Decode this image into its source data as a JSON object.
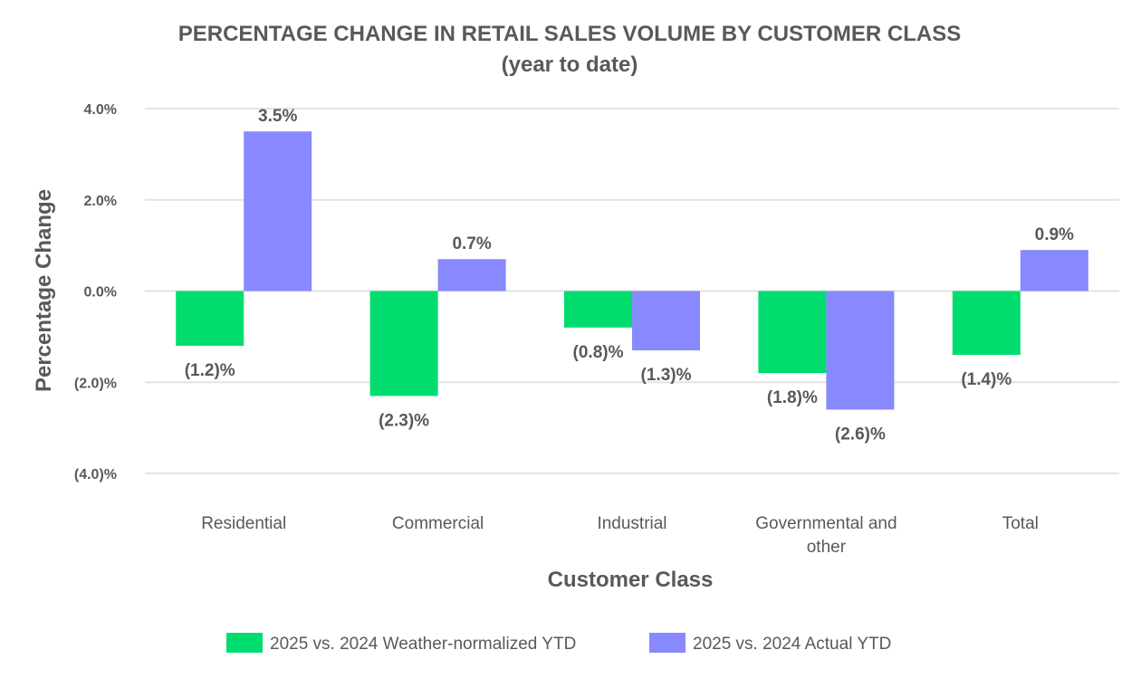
{
  "chart_data": {
    "type": "bar",
    "title": "PERCENTAGE CHANGE IN  RETAIL SALES VOLUME BY CUSTOMER CLASS",
    "subtitle": "(year to date)",
    "xlabel": "Customer Class",
    "ylabel": "Percentage Change",
    "ylim": [
      -4.0,
      4.0
    ],
    "y_ticks": [
      4.0,
      2.0,
      0.0,
      -2.0,
      -4.0
    ],
    "y_tick_labels": [
      "4.0%",
      "2.0%",
      "0.0%",
      "(2.0)%",
      "(4.0)%"
    ],
    "grid": true,
    "legend_position": "bottom",
    "categories": [
      [
        "Residential"
      ],
      [
        "Commercial"
      ],
      [
        "Industrial"
      ],
      [
        "Governmental and",
        "other"
      ],
      [
        "Total"
      ]
    ],
    "series": [
      {
        "name": "2025 vs. 2024 Weather-normalized YTD",
        "color": "#00dd6e",
        "values": [
          -1.2,
          -2.3,
          -0.8,
          -1.8,
          -1.4
        ],
        "labels": [
          "(1.2)%",
          "(2.3)%",
          "(0.8)%",
          "(1.8)%",
          "(1.4)%"
        ]
      },
      {
        "name": "2025 vs. 2024 Actual YTD",
        "color": "#8888ff",
        "values": [
          3.5,
          0.7,
          -1.3,
          -2.6,
          0.9
        ],
        "labels": [
          "3.5%",
          "0.7%",
          "(1.3)%",
          "(2.6)%",
          "0.9%"
        ]
      }
    ]
  }
}
